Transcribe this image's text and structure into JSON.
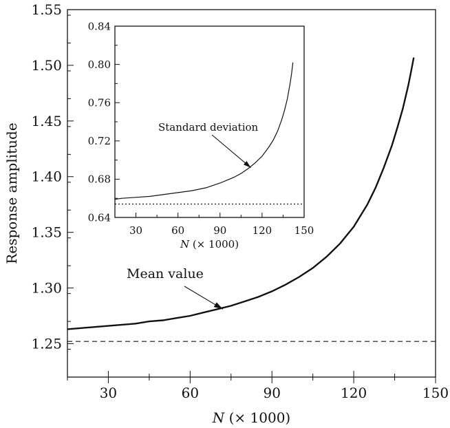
{
  "chart_data": [
    {
      "id": "main",
      "type": "line",
      "xlabel": "N (× 1000)",
      "xlabel_var": "N",
      "xlabel_rest": " (× 1000)",
      "ylabel": "Response amplitude",
      "xlim": [
        15,
        150
      ],
      "ylim": [
        1.22,
        1.55
      ],
      "xticks": [
        30,
        60,
        90,
        120,
        150
      ],
      "xtick_labels": [
        "30",
        "60",
        "90",
        "120",
        "150"
      ],
      "yticks": [
        1.25,
        1.3,
        1.35,
        1.4,
        1.45,
        1.5,
        1.55
      ],
      "ytick_labels": [
        "1.25",
        "1.30",
        "1.35",
        "1.40",
        "1.45",
        "1.50",
        "1.55"
      ],
      "series": [
        {
          "name": "Mean value",
          "style": "solid",
          "x": [
            15,
            20,
            25,
            30,
            35,
            40,
            45,
            50,
            55,
            60,
            65,
            70,
            75,
            80,
            85,
            90,
            95,
            100,
            105,
            110,
            115,
            120,
            125,
            128,
            131,
            134,
            136,
            138,
            140,
            141,
            142
          ],
          "y": [
            1.263,
            1.264,
            1.265,
            1.266,
            1.267,
            1.268,
            1.27,
            1.271,
            1.273,
            1.275,
            1.278,
            1.281,
            1.284,
            1.288,
            1.292,
            1.297,
            1.303,
            1.31,
            1.318,
            1.328,
            1.34,
            1.355,
            1.375,
            1.39,
            1.408,
            1.428,
            1.444,
            1.461,
            1.482,
            1.494,
            1.507
          ]
        },
        {
          "style": "dashed",
          "x": [
            15,
            150
          ],
          "y": [
            1.252,
            1.252
          ]
        }
      ],
      "annotations": [
        {
          "text": "Mean value",
          "arrow_to": [
            72,
            1.281
          ]
        }
      ]
    },
    {
      "id": "inset",
      "type": "line",
      "xlabel": "N (× 1000)",
      "xlabel_var": "N",
      "xlabel_rest": " (× 1000)",
      "xlim": [
        15,
        150
      ],
      "ylim": [
        0.64,
        0.84
      ],
      "xticks": [
        30,
        60,
        90,
        120,
        150
      ],
      "xtick_labels": [
        "30",
        "60",
        "90",
        "120",
        "150"
      ],
      "yticks": [
        0.64,
        0.68,
        0.72,
        0.76,
        0.8,
        0.84
      ],
      "ytick_labels": [
        "0.64",
        "0.68",
        "0.72",
        "0.76",
        "0.80",
        "0.84"
      ],
      "series": [
        {
          "name": "Standard deviation",
          "style": "solid",
          "x": [
            15,
            20,
            30,
            40,
            50,
            60,
            70,
            80,
            90,
            95,
            100,
            105,
            110,
            115,
            120,
            125,
            128,
            131,
            134,
            136,
            138,
            140,
            141,
            142
          ],
          "y": [
            0.659,
            0.66,
            0.661,
            0.662,
            0.664,
            0.666,
            0.668,
            0.671,
            0.676,
            0.679,
            0.682,
            0.686,
            0.691,
            0.697,
            0.704,
            0.714,
            0.721,
            0.73,
            0.742,
            0.752,
            0.764,
            0.78,
            0.79,
            0.802
          ]
        },
        {
          "style": "dotted",
          "x": [
            15,
            150
          ],
          "y": [
            0.654,
            0.654
          ]
        }
      ],
      "annotations": [
        {
          "text": "Standard deviation",
          "arrow_to": [
            112,
            0.692
          ]
        }
      ]
    }
  ]
}
